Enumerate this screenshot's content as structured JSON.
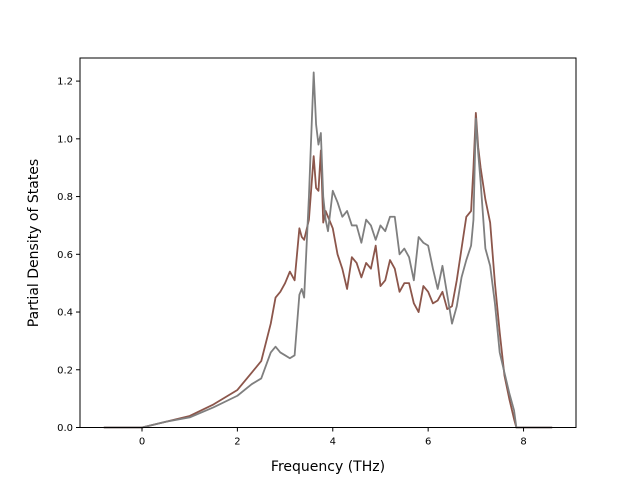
{
  "chart_data": {
    "type": "line",
    "xlabel": "Frequency (THz)",
    "ylabel": "Partial Density of States",
    "xlim": [
      -1.3,
      9.1
    ],
    "ylim": [
      0.0,
      1.28
    ],
    "xticks": [
      0,
      2,
      4,
      6,
      8
    ],
    "yticks": [
      0.0,
      0.2,
      0.4,
      0.6,
      0.8,
      1.0,
      1.2
    ],
    "grid": false,
    "series": [
      {
        "color": "#8c564b",
        "x": [
          -0.8,
          0.0,
          0.5,
          1.0,
          1.5,
          2.0,
          2.3,
          2.5,
          2.7,
          2.8,
          2.9,
          3.0,
          3.1,
          3.2,
          3.3,
          3.35,
          3.4,
          3.5,
          3.6,
          3.65,
          3.7,
          3.75,
          3.8,
          3.85,
          3.9,
          4.0,
          4.1,
          4.2,
          4.3,
          4.4,
          4.5,
          4.6,
          4.7,
          4.8,
          4.9,
          5.0,
          5.1,
          5.2,
          5.3,
          5.4,
          5.5,
          5.6,
          5.7,
          5.8,
          5.9,
          6.0,
          6.1,
          6.2,
          6.3,
          6.4,
          6.5,
          6.6,
          6.7,
          6.8,
          6.9,
          6.95,
          7.0,
          7.05,
          7.1,
          7.2,
          7.3,
          7.4,
          7.5,
          7.6,
          7.7,
          7.8,
          7.85,
          8.0,
          8.6
        ],
        "y": [
          0.0,
          0.0,
          0.02,
          0.04,
          0.08,
          0.13,
          0.19,
          0.23,
          0.36,
          0.45,
          0.47,
          0.5,
          0.54,
          0.51,
          0.69,
          0.66,
          0.65,
          0.72,
          0.94,
          0.83,
          0.82,
          0.96,
          0.71,
          0.75,
          0.73,
          0.69,
          0.6,
          0.55,
          0.48,
          0.59,
          0.57,
          0.52,
          0.57,
          0.55,
          0.63,
          0.49,
          0.51,
          0.58,
          0.55,
          0.47,
          0.5,
          0.5,
          0.43,
          0.4,
          0.49,
          0.47,
          0.43,
          0.44,
          0.47,
          0.41,
          0.42,
          0.51,
          0.62,
          0.73,
          0.75,
          0.9,
          1.09,
          0.97,
          0.9,
          0.79,
          0.71,
          0.5,
          0.33,
          0.18,
          0.1,
          0.03,
          0.0,
          0.0,
          0.0
        ]
      },
      {
        "color": "#7f7f7f",
        "x": [
          -0.8,
          0.0,
          0.5,
          1.0,
          1.5,
          2.0,
          2.3,
          2.5,
          2.7,
          2.8,
          2.9,
          3.0,
          3.1,
          3.2,
          3.3,
          3.35,
          3.4,
          3.5,
          3.6,
          3.65,
          3.7,
          3.75,
          3.8,
          3.85,
          3.9,
          4.0,
          4.1,
          4.2,
          4.3,
          4.4,
          4.5,
          4.6,
          4.7,
          4.8,
          4.9,
          5.0,
          5.1,
          5.2,
          5.3,
          5.4,
          5.5,
          5.6,
          5.7,
          5.8,
          5.9,
          6.0,
          6.1,
          6.2,
          6.3,
          6.4,
          6.5,
          6.6,
          6.7,
          6.8,
          6.9,
          6.95,
          7.0,
          7.05,
          7.1,
          7.2,
          7.3,
          7.4,
          7.5,
          7.6,
          7.7,
          7.8,
          7.85,
          8.0,
          8.6
        ],
        "y": [
          0.0,
          0.0,
          0.02,
          0.035,
          0.07,
          0.11,
          0.15,
          0.17,
          0.26,
          0.28,
          0.26,
          0.25,
          0.24,
          0.25,
          0.46,
          0.48,
          0.45,
          0.8,
          1.23,
          1.05,
          0.98,
          1.02,
          0.8,
          0.72,
          0.68,
          0.82,
          0.78,
          0.73,
          0.75,
          0.7,
          0.7,
          0.64,
          0.72,
          0.7,
          0.65,
          0.7,
          0.68,
          0.73,
          0.73,
          0.6,
          0.62,
          0.59,
          0.51,
          0.66,
          0.64,
          0.63,
          0.55,
          0.48,
          0.56,
          0.46,
          0.36,
          0.42,
          0.52,
          0.58,
          0.63,
          0.72,
          1.07,
          0.95,
          0.85,
          0.62,
          0.56,
          0.43,
          0.26,
          0.19,
          0.12,
          0.06,
          0.0,
          0.0,
          0.0
        ]
      }
    ]
  }
}
